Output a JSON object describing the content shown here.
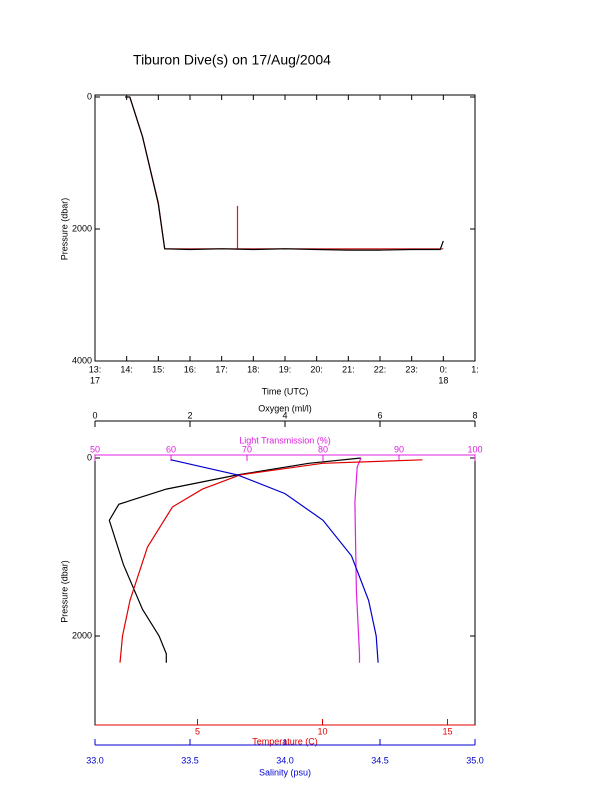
{
  "chart_data": [
    {
      "type": "line",
      "title": "Tiburon Dive(s) on 17/Aug/2004",
      "xlabel": "Time (UTC)",
      "ylabel": "Pressure (dbar)",
      "xlim": [
        13,
        25
      ],
      "ylim": [
        0,
        4000
      ],
      "y_inverted": true,
      "xticks": [
        {
          "value": 13,
          "label": "13:"
        },
        {
          "value": 14,
          "label": "14:"
        },
        {
          "value": 15,
          "label": "15:"
        },
        {
          "value": 16,
          "label": "16:"
        },
        {
          "value": 17,
          "label": "17:"
        },
        {
          "value": 18,
          "label": "18:"
        },
        {
          "value": 19,
          "label": "19:"
        },
        {
          "value": 20,
          "label": "20:"
        },
        {
          "value": 21,
          "label": "21:"
        },
        {
          "value": 22,
          "label": "22:"
        },
        {
          "value": 23,
          "label": "23:"
        },
        {
          "value": 24,
          "label": "0:"
        },
        {
          "value": 25,
          "label": "1:"
        }
      ],
      "date_labels": [
        {
          "value": 13,
          "label": "17"
        },
        {
          "value": 24,
          "label": "18"
        }
      ],
      "yticks": [
        0,
        2000,
        4000
      ],
      "series": [
        {
          "color": "#d02020",
          "x": [
            14.1,
            14.5,
            15.0,
            15.2,
            17.5,
            17.5,
            17.5,
            19,
            22,
            24.0
          ],
          "values": [
            0,
            600,
            1600,
            2300,
            2300,
            1650,
            2300,
            2300,
            2300,
            2300
          ]
        },
        {
          "color": "#000000",
          "x": [
            13.95,
            14.1,
            14.5,
            15.0,
            15.2,
            16,
            17,
            18,
            19,
            20,
            21,
            22,
            23,
            23.9,
            24.0
          ],
          "values": [
            0,
            0,
            600,
            1620,
            2300,
            2310,
            2300,
            2310,
            2300,
            2310,
            2320,
            2320,
            2310,
            2310,
            2180
          ]
        }
      ]
    },
    {
      "type": "profile",
      "ylabel": "Pressure (dbar)",
      "ylim": [
        0,
        3000
      ],
      "y_inverted": true,
      "yticks": [
        0,
        2000
      ],
      "axes": [
        {
          "label": "Oxygen (ml/l)",
          "color": "#000000",
          "position": "top",
          "xlim": [
            0,
            8
          ],
          "xticks": [
            0,
            2,
            4,
            6,
            8
          ]
        },
        {
          "label": "Light Transmission (%)",
          "color": "#e020e0",
          "position": "top",
          "xlim": [
            50,
            100
          ],
          "xticks": [
            50,
            60,
            70,
            80,
            90,
            100
          ]
        },
        {
          "label": "Temperature (C)",
          "color": "#e00000",
          "position": "bottom",
          "xlim": [
            0.9,
            16.1
          ],
          "xticks": [
            5,
            10,
            15
          ]
        },
        {
          "label": "Salinity (psu)",
          "color": "#0000d0",
          "position": "bottom",
          "xlim": [
            33,
            35
          ],
          "xticks": [
            {
              "value": 33,
              "label": "33.0"
            },
            {
              "value": 33.5,
              "label": "33.5"
            },
            {
              "value": 34,
              "label": "34.0"
            },
            {
              "value": 34.5,
              "label": "34.5"
            },
            {
              "value": 35,
              "label": "35.0"
            }
          ]
        }
      ],
      "series": [
        {
          "axis": 0,
          "color": "#000000",
          "x": [
            5.6,
            4.5,
            3.0,
            1.5,
            0.5,
            0.3,
            0.6,
            1.0,
            1.35,
            1.5,
            1.5
          ],
          "values": [
            0,
            60,
            190,
            350,
            520,
            700,
            1200,
            1700,
            2000,
            2200,
            2300
          ]
        },
        {
          "axis": 1,
          "color": "#e020e0",
          "x": [
            85,
            84.5,
            84.2,
            84.4,
            84.8,
            84.8
          ],
          "values": [
            0,
            100,
            500,
            1500,
            2200,
            2300
          ]
        },
        {
          "axis": 2,
          "color": "#e00000",
          "x": [
            14,
            10,
            6.7,
            5.2,
            4.0,
            3.0,
            2.3,
            2.0,
            1.9
          ],
          "values": [
            20,
            60,
            190,
            350,
            550,
            1000,
            1600,
            2000,
            2300
          ]
        },
        {
          "axis": 3,
          "color": "#0000d0",
          "x": [
            33.4,
            33.75,
            34.0,
            34.2,
            34.35,
            34.44,
            34.48,
            34.49
          ],
          "values": [
            20,
            190,
            400,
            700,
            1100,
            1600,
            2000,
            2300
          ]
        }
      ]
    }
  ]
}
